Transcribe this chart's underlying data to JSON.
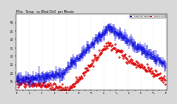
{
  "title": "Milw.  Temp.",
  "subtitle": "vs Wind Chill  per Minute",
  "bg_color": "#d8d8d8",
  "plot_bg": "#ffffff",
  "temp_color": "#0000dd",
  "windchill_color": "#dd0000",
  "ylim": [
    10,
    55
  ],
  "yticks": [
    15,
    20,
    25,
    30,
    35,
    40,
    45,
    50
  ],
  "n_minutes": 1440,
  "legend_temp_label": "Outdoor Temp",
  "legend_wc_label": "Wind Chill",
  "grid_color": "#aaaaaa"
}
